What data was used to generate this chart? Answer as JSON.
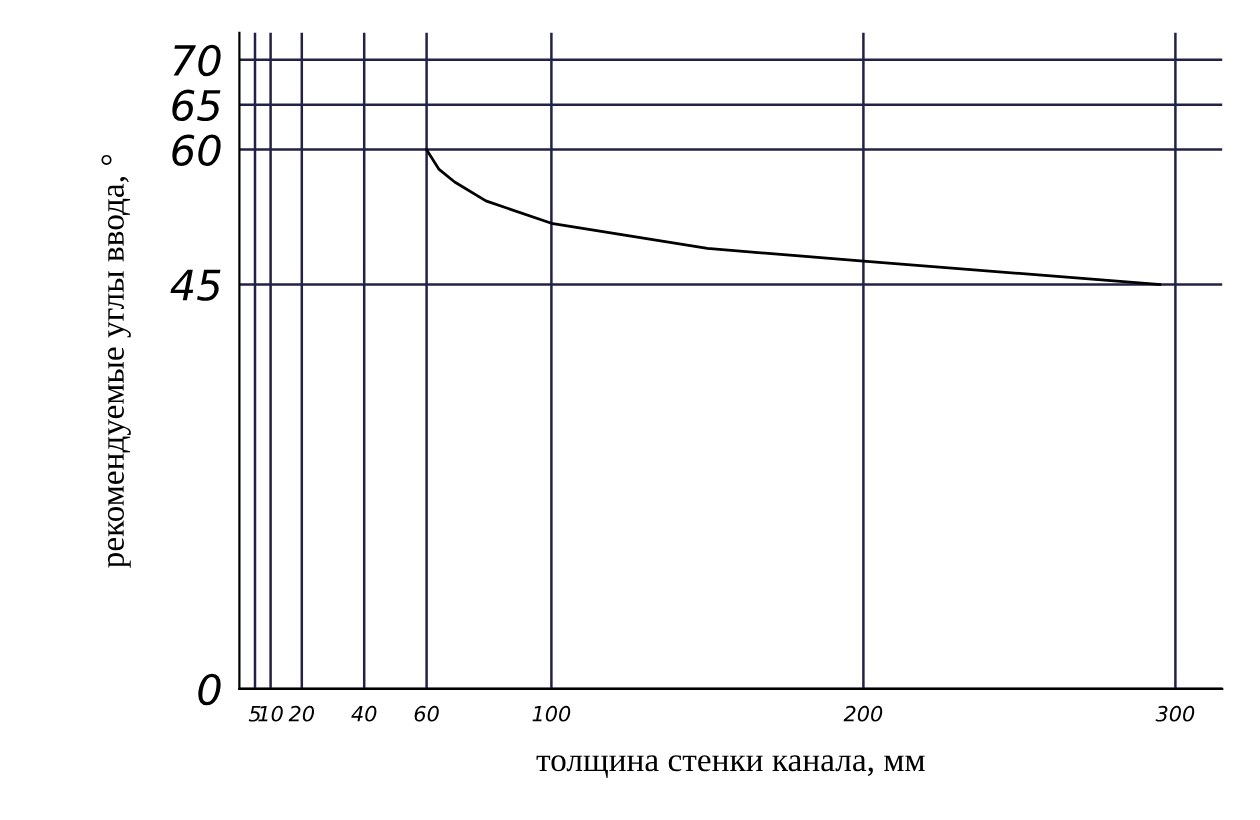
{
  "chart_data": {
    "type": "line",
    "xlabel": "толщина стенки канала, мм",
    "ylabel": "рекомендуемые углы ввода, °",
    "x": [
      60,
      64,
      69,
      79,
      100,
      150,
      200,
      251,
      295
    ],
    "series": [
      {
        "color": "#000000",
        "values": [
          60,
          57.8,
          56.4,
          54.3,
          51.8,
          49.0,
          47.6,
          46.2,
          45.0
        ]
      }
    ],
    "xlim": [
      0,
      315
    ],
    "ylim": [
      0,
      73
    ],
    "xticks": [
      5,
      10,
      20,
      40,
      60,
      100,
      200,
      300
    ],
    "yticks": [
      0,
      45,
      60,
      65,
      70
    ],
    "grid": true,
    "marker": "none",
    "line_style": "solid"
  }
}
